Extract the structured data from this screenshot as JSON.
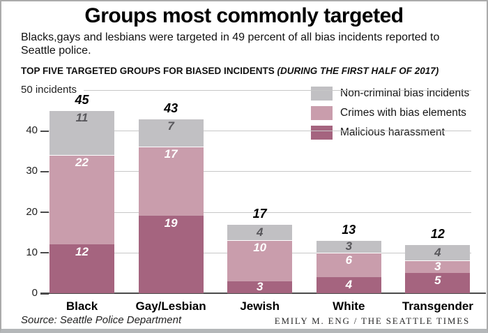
{
  "header": {
    "title": "Groups most commonly targeted",
    "subtitle": "Blacks,gays and lesbians were targeted in 49 percent of all bias incidents reported to Seattle police.",
    "section_label": "TOP FIVE TARGETED GROUPS FOR BIASED INCIDENTS ",
    "section_note": "(DURING THE FIRST HALF OF 2017)"
  },
  "chart_data": {
    "type": "bar",
    "stacked": true,
    "title": "Groups most commonly targeted",
    "categories": [
      "Black",
      "Gay/Lesbian",
      "Jewish",
      "White",
      "Transgender"
    ],
    "series": [
      {
        "name": "Malicious harassment",
        "color": "#a5647f",
        "label_color": "#ffffff",
        "values": [
          12,
          19,
          3,
          4,
          5
        ]
      },
      {
        "name": "Crimes with bias elements",
        "color": "#c99dac",
        "label_color": "#ffffff",
        "values": [
          22,
          17,
          10,
          6,
          3
        ]
      },
      {
        "name": "Non-criminal bias incidents",
        "color": "#c1c0c3",
        "label_color": "#59585c",
        "values": [
          11,
          7,
          4,
          3,
          4
        ]
      }
    ],
    "totals": [
      45,
      43,
      17,
      13,
      12
    ],
    "y_axis": {
      "top_label": "50 incidents",
      "ticks": [
        0,
        10,
        20,
        30,
        40
      ],
      "max": 50,
      "ylim": [
        0,
        50
      ]
    },
    "grid": true,
    "legend_position": "top-right",
    "legend": [
      {
        "label": "Non-criminal bias incidents",
        "color": "#c1c0c3"
      },
      {
        "label": "Crimes with bias elements",
        "color": "#c99dac"
      },
      {
        "label": "Malicious harassment",
        "color": "#a5647f"
      }
    ]
  },
  "footer": {
    "source": "Source: Seattle Police Department",
    "credit": "EMILY M. ENG / THE SEATTLE TIMES"
  }
}
